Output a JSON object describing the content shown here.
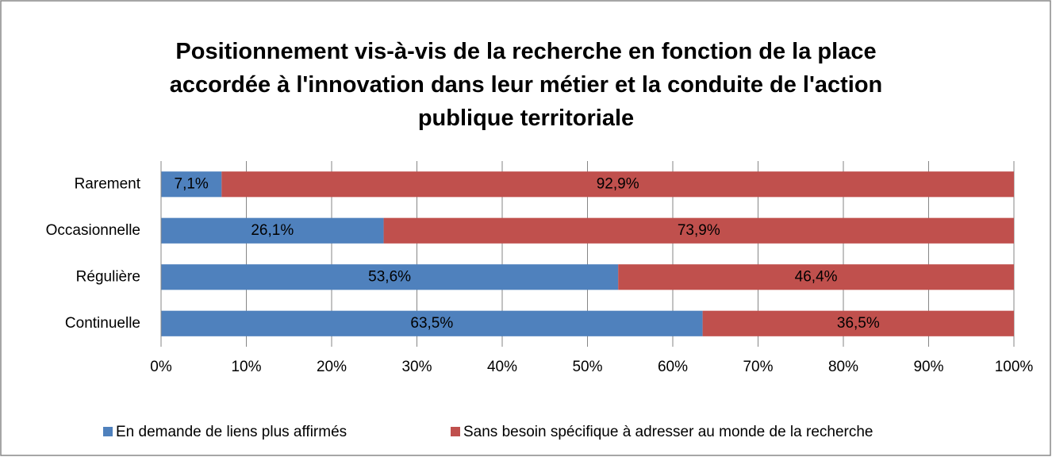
{
  "chart_data": {
    "type": "stacked_barh",
    "title": "Positionnement vis-à-vis de la recherche en fonction de la place accordée à l'innovation dans leur métier et la conduite de l'action publique territoriale",
    "categories": [
      "Rarement",
      "Occasionnelle",
      "Régulière",
      "Continuelle"
    ],
    "series": [
      {
        "name": "En demande de liens plus affirmés",
        "color": "#4f81bd",
        "values": [
          7.1,
          26.1,
          53.6,
          63.5
        ],
        "value_labels": [
          "7,1%",
          "26,1%",
          "53,6%",
          "63,5%"
        ]
      },
      {
        "name": "Sans besoin spécifique à adresser au monde de la recherche",
        "color": "#c0504d",
        "values": [
          92.9,
          73.9,
          46.4,
          36.5
        ],
        "value_labels": [
          "92,9%",
          "73,9%",
          "46,4%",
          "36,5%"
        ]
      }
    ],
    "xlim": [
      0,
      100
    ],
    "xticks": [
      {
        "value": 0,
        "label": "0%"
      },
      {
        "value": 10,
        "label": "10%"
      },
      {
        "value": 20,
        "label": "20%"
      },
      {
        "value": 30,
        "label": "30%"
      },
      {
        "value": 40,
        "label": "40%"
      },
      {
        "value": 50,
        "label": "50%"
      },
      {
        "value": 60,
        "label": "60%"
      },
      {
        "value": 70,
        "label": "70%"
      },
      {
        "value": 80,
        "label": "80%"
      },
      {
        "value": 90,
        "label": "90%"
      },
      {
        "value": 100,
        "label": "100%"
      }
    ],
    "grid": true,
    "legend": "bottom"
  }
}
